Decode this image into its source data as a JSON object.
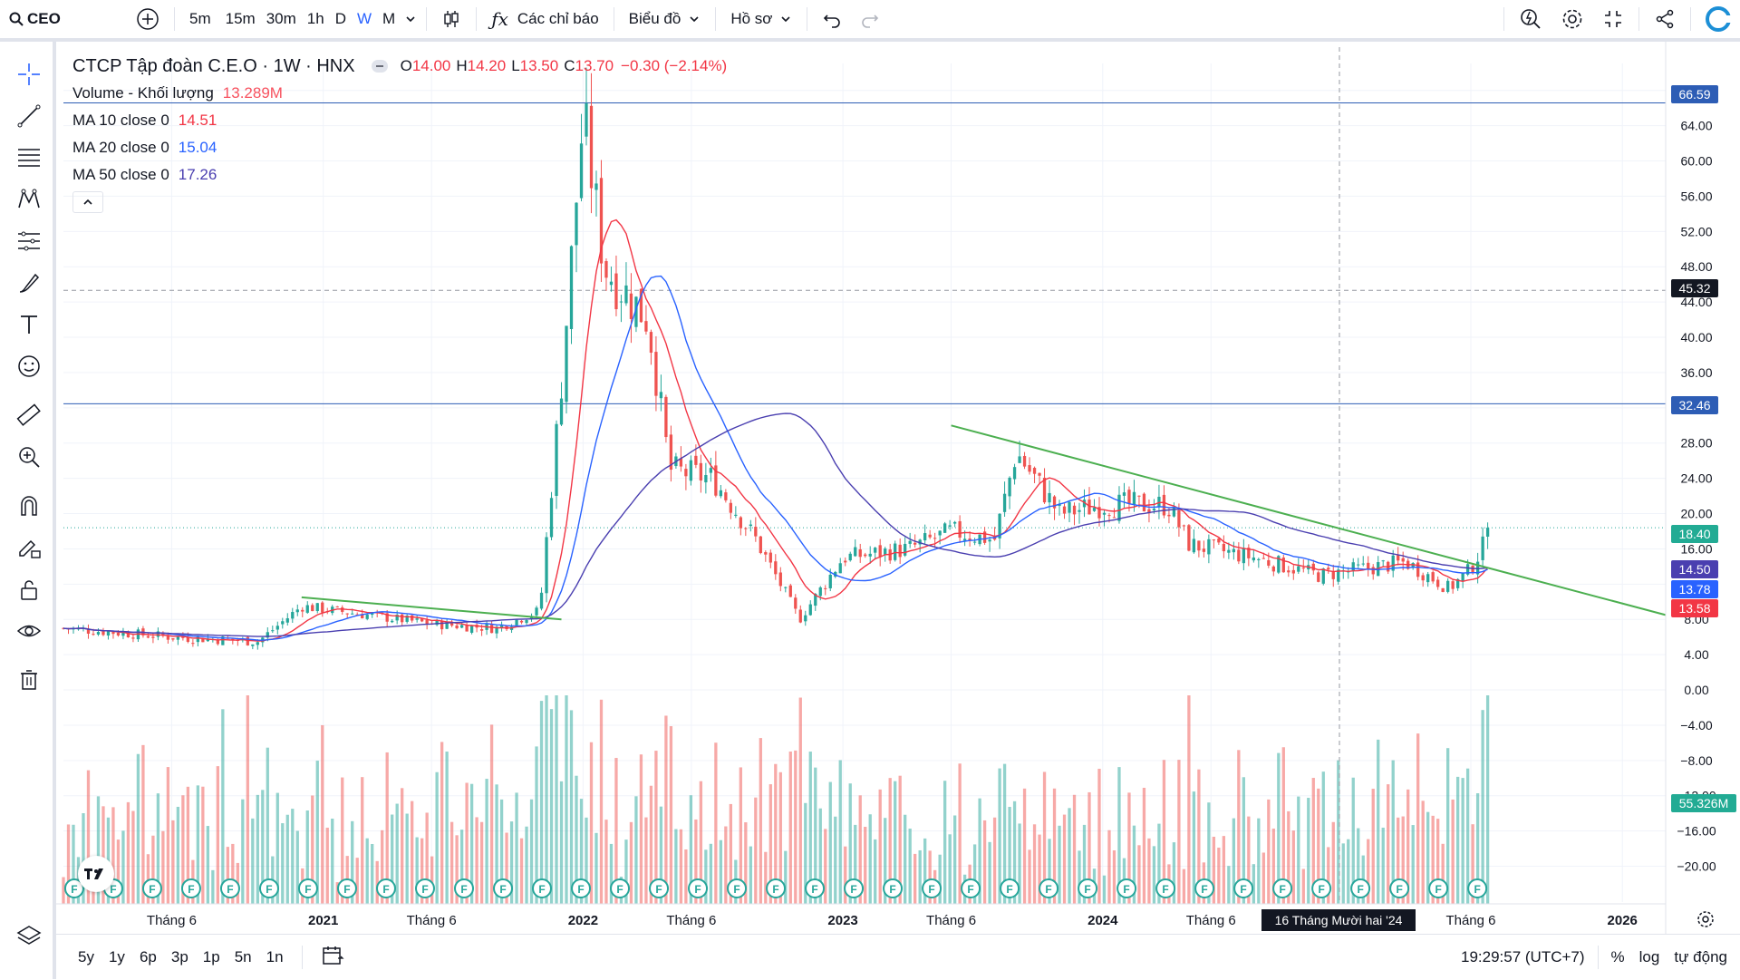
{
  "toolbar": {
    "symbol": "CEO",
    "intervals": [
      "5m",
      "15m",
      "30m",
      "1h",
      "D",
      "W",
      "M"
    ],
    "active_interval": "W",
    "indicators_label": "Các chỉ báo",
    "chart_label": "Biểu đồ",
    "profile_label": "Hồ sơ"
  },
  "legend": {
    "title": "CTCP Tập đoàn C.E.O · 1W · HNX",
    "o_label": "O",
    "o_value": "14.00",
    "h_label": "H",
    "h_value": "14.20",
    "l_label": "L",
    "l_value": "13.50",
    "c_label": "C",
    "c_value": "13.70",
    "change": "−0.30 (−2.14%)",
    "volume_label": "Volume - Khối lượng",
    "volume_value": "13.289M",
    "ma10_label": "MA 10 close 0",
    "ma10_value": "14.51",
    "ma20_label": "MA 20 close 0",
    "ma20_value": "15.04",
    "ma50_label": "MA 50 close 0",
    "ma50_value": "17.26"
  },
  "price_labels": {
    "level_top": "66.59",
    "crosshair": "45.32",
    "level_mid": "32.46",
    "last": "18.40",
    "ma10": "14.50",
    "ma20": "13.78",
    "ma50": "13.58",
    "volume": "55.326M"
  },
  "colors": {
    "up": "#26a69a",
    "down": "#ef5350",
    "ma10": "#f23645",
    "ma20": "#2962ff",
    "ma50": "#4a3fb0",
    "trendline": "#4caf50",
    "hline": "#2d5db5"
  },
  "time_axis": {
    "labels": [
      "Tháng 6",
      "2021",
      "Tháng 6",
      "2022",
      "Tháng 6",
      "2023",
      "Tháng 6",
      "2024",
      "Tháng 6",
      "Tháng 6",
      "2026"
    ],
    "crosshair_date": "16 Tháng Mười hai '24"
  },
  "bottombar": {
    "ranges": [
      "5y",
      "1y",
      "6p",
      "3p",
      "1p",
      "5n",
      "1n"
    ],
    "time": "19:29:57 (UTC+7)",
    "percent": "%",
    "log": "log",
    "auto": "tự động"
  },
  "chart_data": {
    "type": "candlestick",
    "y_ticks": [
      "68.00",
      "64.00",
      "60.00",
      "56.00",
      "52.00",
      "48.00",
      "44.00",
      "40.00",
      "36.00",
      "32.00",
      "28.00",
      "24.00",
      "20.00",
      "16.00",
      "12.00",
      "8.00",
      "4.00",
      "0.00",
      "−4.00",
      "−8.00",
      "−12.00",
      "−16.00",
      "−20.00"
    ],
    "ylim": [
      -22,
      69
    ],
    "x_range": [
      "2020-01",
      "2026-03"
    ],
    "close_path": [
      {
        "x": "2020-01",
        "y": 7.0
      },
      {
        "x": "2020-06",
        "y": 6.0
      },
      {
        "x": "2020-10",
        "y": 5.5
      },
      {
        "x": "2020-12",
        "y": 9.5
      },
      {
        "x": "2021-03",
        "y": 8.5
      },
      {
        "x": "2021-06",
        "y": 7.5
      },
      {
        "x": "2021-09",
        "y": 7.0
      },
      {
        "x": "2021-11",
        "y": 9.0
      },
      {
        "x": "2021-12",
        "y": 35.0
      },
      {
        "x": "2022-01",
        "y": 65.0
      },
      {
        "x": "2022-02",
        "y": 48.0
      },
      {
        "x": "2022-04",
        "y": 42.0
      },
      {
        "x": "2022-05",
        "y": 25.0
      },
      {
        "x": "2022-07",
        "y": 24.0
      },
      {
        "x": "2022-09",
        "y": 17.0
      },
      {
        "x": "2022-11",
        "y": 8.0
      },
      {
        "x": "2023-01",
        "y": 15.0
      },
      {
        "x": "2023-04",
        "y": 16.0
      },
      {
        "x": "2023-06",
        "y": 18.0
      },
      {
        "x": "2023-08",
        "y": 17.0
      },
      {
        "x": "2023-09",
        "y": 27.0
      },
      {
        "x": "2023-11",
        "y": 20.0
      },
      {
        "x": "2024-01",
        "y": 21.0
      },
      {
        "x": "2024-04",
        "y": 21.0
      },
      {
        "x": "2024-05",
        "y": 16.5
      },
      {
        "x": "2024-08",
        "y": 15.0
      },
      {
        "x": "2024-11",
        "y": 13.0
      },
      {
        "x": "2025-03",
        "y": 14.5
      },
      {
        "x": "2025-05",
        "y": 11.5
      },
      {
        "x": "2025-06",
        "y": 13.7
      },
      {
        "x": "2025-07",
        "y": 18.4
      }
    ],
    "horizontal_lines": [
      66.59,
      32.46
    ],
    "crosshair_level": 45.32,
    "last_price": 18.4,
    "trendlines": [
      {
        "from": {
          "x": "2020-12",
          "y": 10.5
        },
        "to": {
          "x": "2021-12",
          "y": 8.0
        }
      },
      {
        "from": {
          "x": "2023-06",
          "y": 30.0
        },
        "to": {
          "x": "2026-03",
          "y": 8.5
        }
      }
    ],
    "volume_last": "55.326M"
  }
}
